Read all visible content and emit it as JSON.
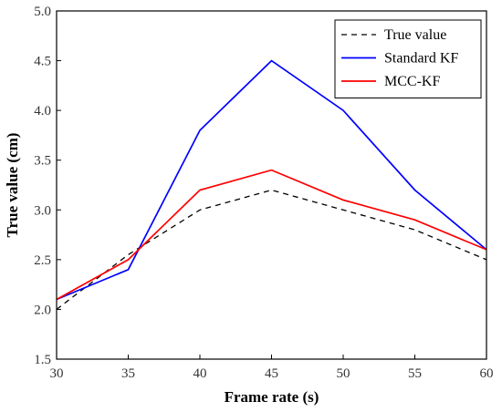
{
  "chart_data": {
    "type": "line",
    "xlabel": "Frame rate (s)",
    "ylabel": "True value (cm)",
    "xlim": [
      30,
      60
    ],
    "ylim": [
      1.5,
      5.0
    ],
    "x_ticks": [
      "30",
      "35",
      "40",
      "45",
      "50",
      "55",
      "60"
    ],
    "y_ticks": [
      "1.5",
      "2.0",
      "2.5",
      "3.0",
      "3.5",
      "4.0",
      "4.5",
      "5.0"
    ],
    "x": [
      30,
      35,
      40,
      45,
      50,
      55,
      60
    ],
    "grid": false,
    "legend_position": "top-right",
    "series": [
      {
        "name": "True value",
        "values": [
          2.0,
          2.55,
          3.0,
          3.2,
          3.0,
          2.8,
          2.5
        ],
        "color": "#000000",
        "dash": "dashed"
      },
      {
        "name": "Standard KF",
        "values": [
          2.1,
          2.4,
          3.8,
          4.5,
          4.0,
          3.2,
          2.6
        ],
        "color": "#0000ff",
        "dash": "solid"
      },
      {
        "name": "MCC-KF",
        "values": [
          2.1,
          2.5,
          3.2,
          3.4,
          3.1,
          2.9,
          2.6
        ],
        "color": "#ff0000",
        "dash": "solid"
      }
    ]
  }
}
